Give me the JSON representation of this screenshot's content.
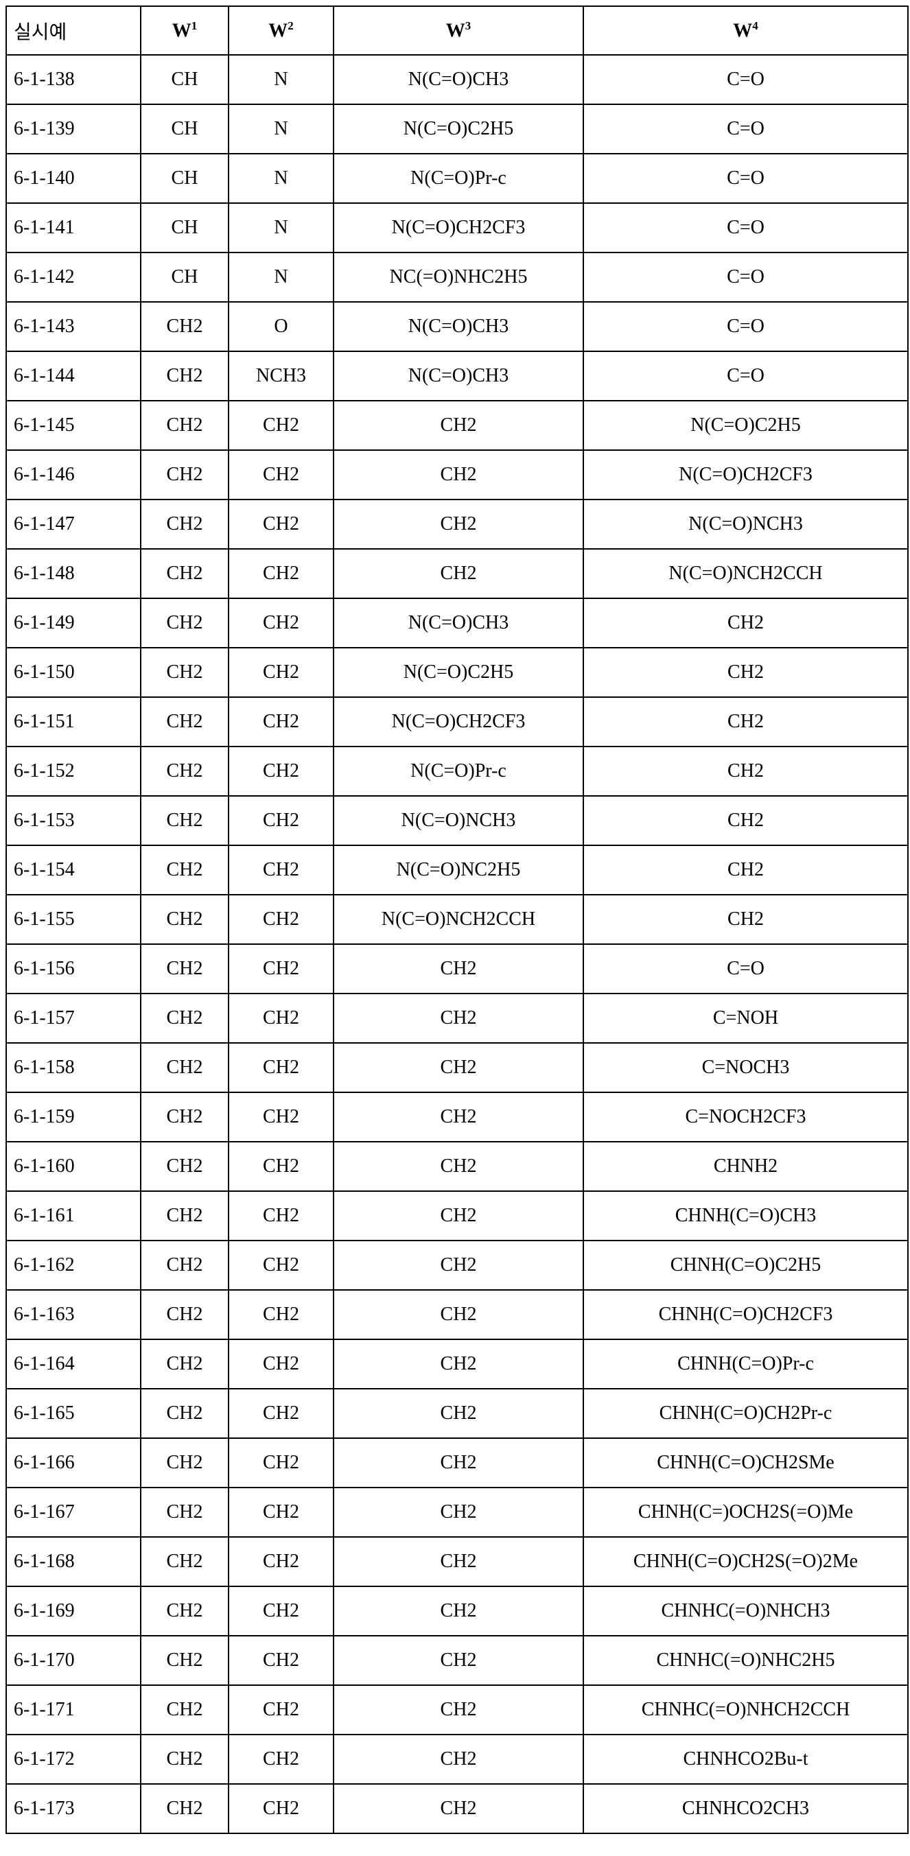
{
  "table": {
    "headers": [
      {
        "base": "실시예",
        "sup": ""
      },
      {
        "base": "W",
        "sup": "1"
      },
      {
        "base": "W",
        "sup": "2"
      },
      {
        "base": "W",
        "sup": "3"
      },
      {
        "base": "W",
        "sup": "4"
      }
    ],
    "rows": [
      [
        "6-1-138",
        "CH",
        "N",
        "N(C=O)CH3",
        "C=O"
      ],
      [
        "6-1-139",
        "CH",
        "N",
        "N(C=O)C2H5",
        "C=O"
      ],
      [
        "6-1-140",
        "CH",
        "N",
        "N(C=O)Pr-c",
        "C=O"
      ],
      [
        "6-1-141",
        "CH",
        "N",
        "N(C=O)CH2CF3",
        "C=O"
      ],
      [
        "6-1-142",
        "CH",
        "N",
        "NC(=O)NHC2H5",
        "C=O"
      ],
      [
        "6-1-143",
        "CH2",
        "O",
        "N(C=O)CH3",
        "C=O"
      ],
      [
        "6-1-144",
        "CH2",
        "NCH3",
        "N(C=O)CH3",
        "C=O"
      ],
      [
        "6-1-145",
        "CH2",
        "CH2",
        "CH2",
        "N(C=O)C2H5"
      ],
      [
        "6-1-146",
        "CH2",
        "CH2",
        "CH2",
        "N(C=O)CH2CF3"
      ],
      [
        "6-1-147",
        "CH2",
        "CH2",
        "CH2",
        "N(C=O)NCH3"
      ],
      [
        "6-1-148",
        "CH2",
        "CH2",
        "CH2",
        "N(C=O)NCH2CCH"
      ],
      [
        "6-1-149",
        "CH2",
        "CH2",
        "N(C=O)CH3",
        "CH2"
      ],
      [
        "6-1-150",
        "CH2",
        "CH2",
        "N(C=O)C2H5",
        "CH2"
      ],
      [
        "6-1-151",
        "CH2",
        "CH2",
        "N(C=O)CH2CF3",
        "CH2"
      ],
      [
        "6-1-152",
        "CH2",
        "CH2",
        "N(C=O)Pr-c",
        "CH2"
      ],
      [
        "6-1-153",
        "CH2",
        "CH2",
        "N(C=O)NCH3",
        "CH2"
      ],
      [
        "6-1-154",
        "CH2",
        "CH2",
        "N(C=O)NC2H5",
        "CH2"
      ],
      [
        "6-1-155",
        "CH2",
        "CH2",
        "N(C=O)NCH2CCH",
        "CH2"
      ],
      [
        "6-1-156",
        "CH2",
        "CH2",
        "CH2",
        "C=O"
      ],
      [
        "6-1-157",
        "CH2",
        "CH2",
        "CH2",
        "C=NOH"
      ],
      [
        "6-1-158",
        "CH2",
        "CH2",
        "CH2",
        "C=NOCH3"
      ],
      [
        "6-1-159",
        "CH2",
        "CH2",
        "CH2",
        "C=NOCH2CF3"
      ],
      [
        "6-1-160",
        "CH2",
        "CH2",
        "CH2",
        "CHNH2"
      ],
      [
        "6-1-161",
        "CH2",
        "CH2",
        "CH2",
        "CHNH(C=O)CH3"
      ],
      [
        "6-1-162",
        "CH2",
        "CH2",
        "CH2",
        "CHNH(C=O)C2H5"
      ],
      [
        "6-1-163",
        "CH2",
        "CH2",
        "CH2",
        "CHNH(C=O)CH2CF3"
      ],
      [
        "6-1-164",
        "CH2",
        "CH2",
        "CH2",
        "CHNH(C=O)Pr-c"
      ],
      [
        "6-1-165",
        "CH2",
        "CH2",
        "CH2",
        "CHNH(C=O)CH2Pr-c"
      ],
      [
        "6-1-166",
        "CH2",
        "CH2",
        "CH2",
        "CHNH(C=O)CH2SMe"
      ],
      [
        "6-1-167",
        "CH2",
        "CH2",
        "CH2",
        "CHNH(C=)OCH2S(=O)Me"
      ],
      [
        "6-1-168",
        "CH2",
        "CH2",
        "CH2",
        "CHNH(C=O)CH2S(=O)2Me"
      ],
      [
        "6-1-169",
        "CH2",
        "CH2",
        "CH2",
        "CHNHC(=O)NHCH3"
      ],
      [
        "6-1-170",
        "CH2",
        "CH2",
        "CH2",
        "CHNHC(=O)NHC2H5"
      ],
      [
        "6-1-171",
        "CH2",
        "CH2",
        "CH2",
        "CHNHC(=O)NHCH2CCH"
      ],
      [
        "6-1-172",
        "CH2",
        "CH2",
        "CH2",
        "CHNHCO2Bu-t"
      ],
      [
        "6-1-173",
        "CH2",
        "CH2",
        "CH2",
        "CHNHCO2CH3"
      ]
    ]
  }
}
